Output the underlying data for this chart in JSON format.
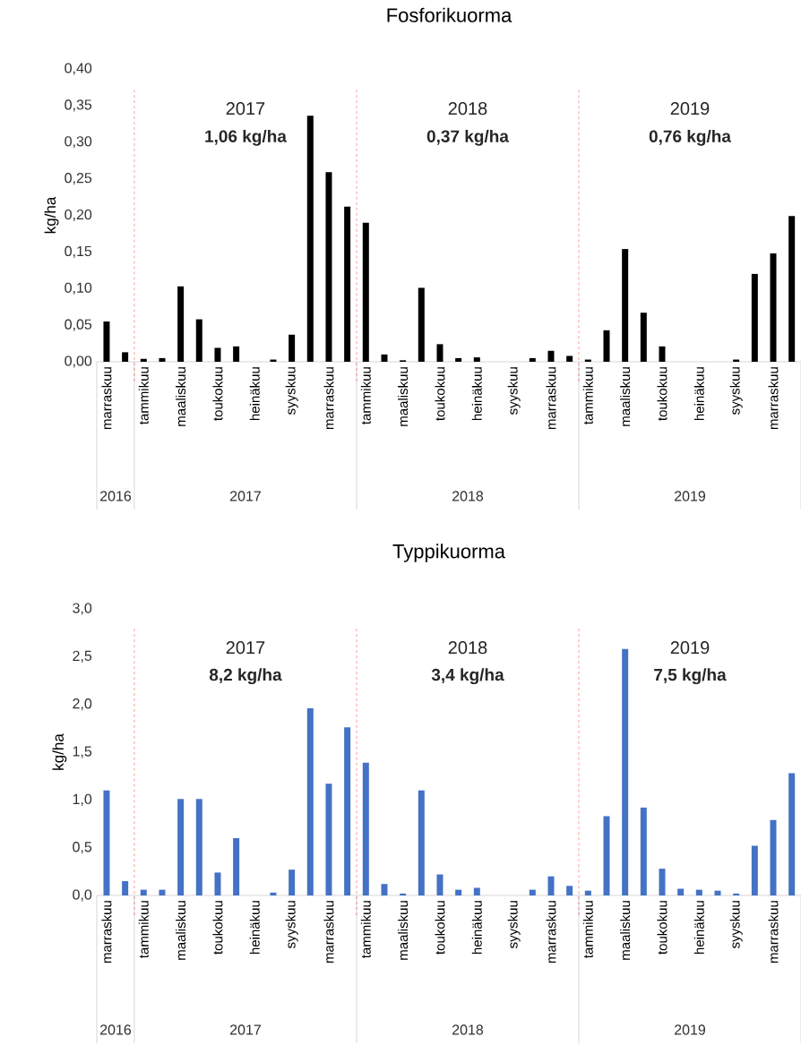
{
  "chart_data": [
    {
      "type": "bar",
      "title": "Fosforikuorma",
      "ylabel": "kg/ha",
      "categories": [
        "marraskuu",
        null,
        "tammikuu",
        null,
        "maaliskuu",
        null,
        "toukokuu",
        null,
        "heinäkuu",
        null,
        "syyskuu",
        null,
        "marraskuu",
        null,
        "tammikuu",
        null,
        "maaliskuu",
        null,
        "toukokuu",
        null,
        "heinäkuu",
        null,
        "syyskuu",
        null,
        "marraskuu",
        null,
        "tammikuu",
        null,
        "maaliskuu",
        null,
        "toukokuu",
        null,
        "heinäkuu",
        null,
        "syyskuu",
        null,
        "marraskuu",
        null
      ],
      "values": [
        0.055,
        0.013,
        0.004,
        0.005,
        0.103,
        0.058,
        0.019,
        0.021,
        0,
        0.003,
        0.037,
        0.336,
        0.259,
        0.212,
        0.19,
        0.01,
        0.002,
        0.101,
        0.024,
        0.005,
        0.006,
        0,
        0,
        0.005,
        0.015,
        0.008,
        0.003,
        0.043,
        0.154,
        0.067,
        0.021,
        0,
        0,
        0,
        0.003,
        0.12,
        0.148,
        0.199
      ],
      "color": "#000000",
      "ylim": [
        0,
        0.4
      ],
      "yticks": [
        {
          "value": 0,
          "label": "0,00"
        },
        {
          "value": 0.05,
          "label": "0,05"
        },
        {
          "value": 0.1,
          "label": "0,10"
        },
        {
          "value": 0.15,
          "label": "0,15"
        },
        {
          "value": 0.2,
          "label": "0,20"
        },
        {
          "value": 0.25,
          "label": "0,25"
        },
        {
          "value": 0.3,
          "label": "0,30"
        },
        {
          "value": 0.35,
          "label": "0,35"
        },
        {
          "value": 0.4,
          "label": "0,40"
        }
      ],
      "annotations": [
        "2017",
        "1,06 kg/ha",
        "2018",
        "0,37 kg/ha",
        "2019",
        "0,76 kg/ha",
        "2016",
        "2017",
        "2018",
        "2019"
      ]
    },
    {
      "type": "bar",
      "title": "Typpikuorma",
      "ylabel": "kg/ha",
      "categories": [
        "marraskuu",
        null,
        "tammikuu",
        null,
        "maaliskuu",
        null,
        "toukokuu",
        null,
        "heinäkuu",
        null,
        "syyskuu",
        null,
        "marraskuu",
        null,
        "tammikuu",
        null,
        "maaliskuu",
        null,
        "toukokuu",
        null,
        "heinäkuu",
        null,
        "syyskuu",
        null,
        "marraskuu",
        null,
        "tammikuu",
        null,
        "maaliskuu",
        null,
        "toukokuu",
        null,
        "heinäkuu",
        null,
        "syyskuu",
        null,
        "marraskuu",
        null
      ],
      "values": [
        1.1,
        0.15,
        0.06,
        0.06,
        1.01,
        1.01,
        0.24,
        0.6,
        0,
        0.03,
        0.27,
        1.96,
        1.17,
        1.76,
        1.39,
        0.12,
        0.02,
        1.1,
        0.22,
        0.06,
        0.08,
        0,
        0,
        0.06,
        0.2,
        0.1,
        0.05,
        0.83,
        2.58,
        0.92,
        0.28,
        0.07,
        0.06,
        0.05,
        0.02,
        0.52,
        0.79,
        1.28
      ],
      "color": "#4472c4",
      "ylim": [
        0,
        3
      ],
      "yticks": [
        {
          "value": 0,
          "label": "0,0"
        },
        {
          "value": 0.5,
          "label": "0,5"
        },
        {
          "value": 1,
          "label": "1,0"
        },
        {
          "value": 1.5,
          "label": "1,5"
        },
        {
          "value": 2,
          "label": "2,0"
        },
        {
          "value": 2.5,
          "label": "2,5"
        },
        {
          "value": 3,
          "label": "3,0"
        }
      ],
      "annotations": [
        "2017",
        "8,2 kg/ha",
        "2018",
        "3,4 kg/ha",
        "2019",
        "7,5 kg/ha",
        "2016",
        "2017",
        "2018",
        "2019"
      ]
    }
  ]
}
